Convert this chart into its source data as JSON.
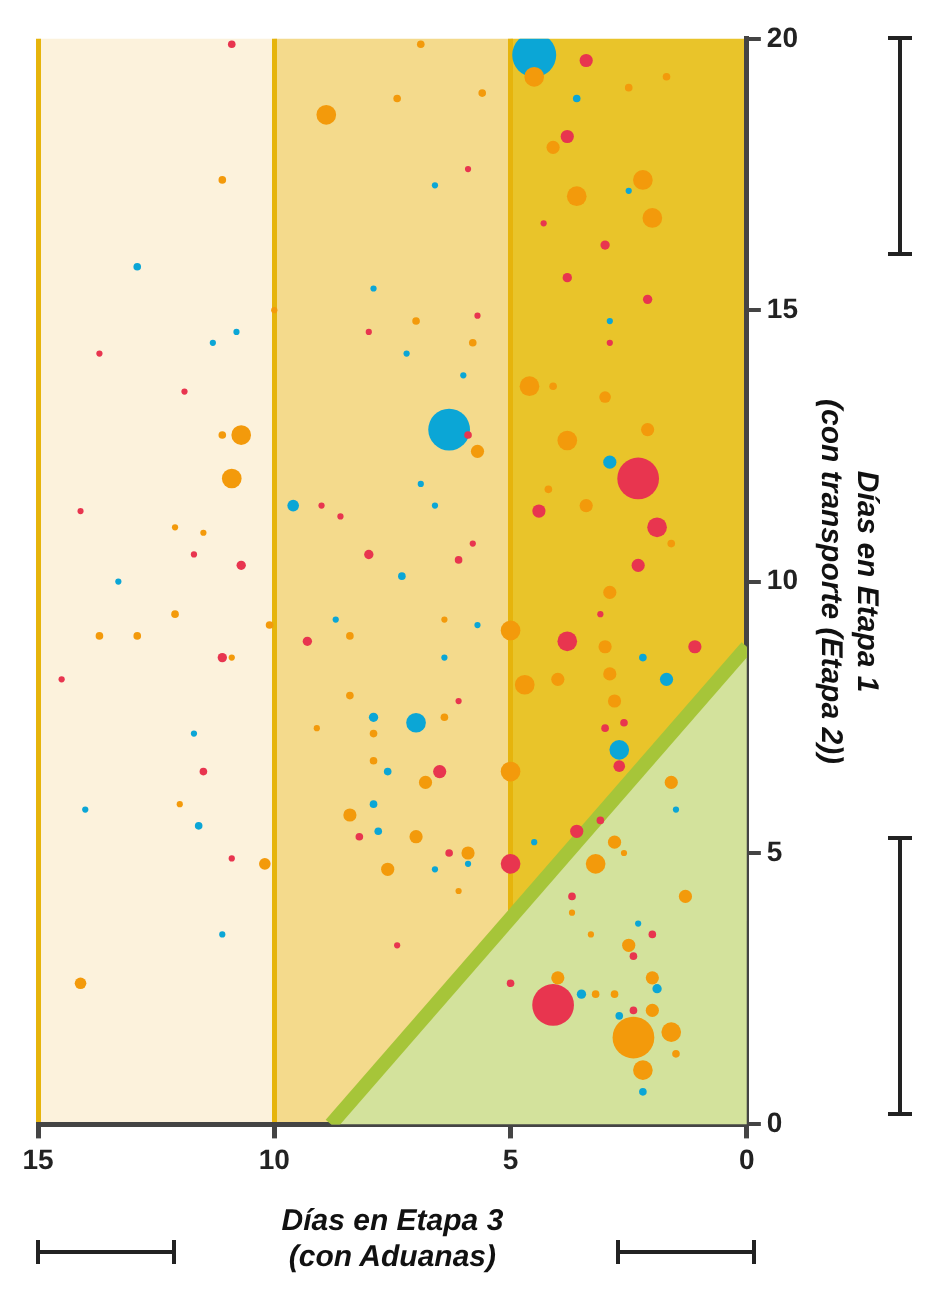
{
  "chart_data": {
    "type": "bubble",
    "xlabel": "Días en Etapa 3\n(con Aduanas)",
    "ylabel": "Días en Etapa 1\n(con transporte (Etapa 2))",
    "xlim": [
      15,
      0
    ],
    "xticks": [
      15,
      10,
      5,
      0
    ],
    "ylim": [
      0,
      20
    ],
    "yticks": [
      0,
      5,
      10,
      15,
      20
    ],
    "grid": "x",
    "bands": [
      {
        "axis": "x",
        "from": 0,
        "to": 5,
        "color": "#e9c42a"
      },
      {
        "axis": "x",
        "from": 5,
        "to": 10,
        "color": "#f4da8c"
      },
      {
        "axis": "x",
        "from": 10,
        "to": 15,
        "color": "#fcf2dc"
      }
    ],
    "series": [
      {
        "type": "area",
        "color": "#a6c539",
        "x": [
          0,
          8.8
        ],
        "values": [
          8.8,
          0
        ]
      },
      {
        "color": "#f39a0b",
        "x": [
          8.9,
          7.4,
          11.1,
          10.0,
          6.9,
          5.6,
          2.5,
          1.7,
          4.5,
          4.1,
          2.2,
          2.0,
          3.6,
          7.0,
          5.8,
          4.6,
          4.1,
          3.0,
          10.7,
          11.1,
          10.9,
          12.1,
          11.5,
          12.1,
          12.9,
          13.7,
          10.9,
          8.4,
          10.1,
          8.4,
          7.9,
          9.1,
          5.7,
          3.8,
          2.1,
          3.4,
          4.2,
          1.6,
          2.9,
          5.0,
          3.0,
          4.7,
          4.0,
          2.9,
          2.8,
          6.4,
          6.4,
          12.0,
          10.2,
          14.1,
          7.9,
          8.4,
          7.6,
          2.4,
          2.2,
          1.6,
          2.0,
          3.2,
          5.0,
          5.9,
          7.0,
          6.8,
          1.6,
          1.3,
          2.5,
          2.0,
          4.0,
          2.8,
          1.5,
          3.2,
          2.8,
          2.6,
          3.3,
          3.7,
          6.1
        ],
        "values": [
          18.6,
          18.9,
          17.4,
          15.0,
          19.9,
          19.0,
          19.1,
          19.3,
          19.3,
          18.0,
          17.4,
          16.7,
          17.1,
          14.8,
          14.4,
          13.6,
          13.6,
          13.4,
          12.7,
          12.7,
          11.9,
          11.0,
          10.9,
          9.4,
          9.0,
          9.0,
          8.6,
          9.0,
          9.2,
          7.9,
          7.2,
          7.3,
          12.4,
          12.6,
          12.8,
          11.4,
          11.7,
          10.7,
          9.8,
          9.1,
          8.8,
          8.1,
          8.2,
          8.3,
          7.8,
          7.5,
          9.3,
          5.9,
          4.8,
          2.6,
          6.7,
          5.7,
          4.7,
          1.6,
          1.0,
          1.7,
          2.1,
          4.8,
          6.5,
          5.0,
          5.3,
          6.3,
          6.3,
          4.2,
          3.3,
          2.7,
          2.7,
          5.2,
          1.3,
          2.4,
          2.4,
          5.0,
          3.5,
          3.9,
          4.3
        ],
        "sizes": [
          0.2,
          0.03,
          0.03,
          0.02,
          0.03,
          0.03,
          0.03,
          0.03,
          0.2,
          0.09,
          0.2,
          0.2,
          0.2,
          0.03,
          0.03,
          0.2,
          0.03,
          0.07,
          0.2,
          0.03,
          0.2,
          0.02,
          0.02,
          0.03,
          0.03,
          0.03,
          0.02,
          0.03,
          0.03,
          0.03,
          0.03,
          0.02,
          0.09,
          0.2,
          0.09,
          0.09,
          0.03,
          0.03,
          0.09,
          0.2,
          0.09,
          0.2,
          0.09,
          0.09,
          0.09,
          0.03,
          0.02,
          0.02,
          0.07,
          0.07,
          0.03,
          0.09,
          0.09,
          0.9,
          0.2,
          0.2,
          0.09,
          0.2,
          0.2,
          0.09,
          0.09,
          0.09,
          0.09,
          0.09,
          0.09,
          0.09,
          0.09,
          0.09,
          0.03,
          0.03,
          0.03,
          0.02,
          0.02,
          0.02,
          0.02
        ]
      },
      {
        "color": "#e8354f",
        "x": [
          10.9,
          8.0,
          13.7,
          11.9,
          3.4,
          3.8,
          3.0,
          3.8,
          2.1,
          4.3,
          2.9,
          5.7,
          5.9,
          9.0,
          8.6,
          8.0,
          10.7,
          14.1,
          11.7,
          11.1,
          9.3,
          14.5,
          5.9,
          2.3,
          1.9,
          2.3,
          4.4,
          3.8,
          1.1,
          6.1,
          5.8,
          3.0,
          2.6,
          6.1,
          3.1,
          11.5,
          10.9,
          8.2,
          7.4,
          4.1,
          5.0,
          3.6,
          6.5,
          2.7,
          2.4,
          5.0,
          3.7,
          2.4,
          2.0,
          6.3,
          3.1
        ],
        "values": [
          19.9,
          14.6,
          14.2,
          13.5,
          19.6,
          18.2,
          16.2,
          15.6,
          15.2,
          16.6,
          14.4,
          14.9,
          17.6,
          11.4,
          11.2,
          10.5,
          10.3,
          11.3,
          10.5,
          8.6,
          8.9,
          8.2,
          12.7,
          11.9,
          11.0,
          10.3,
          11.3,
          8.9,
          8.8,
          10.4,
          10.7,
          7.3,
          7.4,
          7.8,
          9.4,
          6.5,
          4.9,
          5.3,
          3.3,
          2.2,
          4.8,
          5.4,
          6.5,
          6.6,
          2.1,
          2.6,
          4.2,
          3.1,
          3.5,
          5.0,
          5.6
        ],
        "sizes": [
          0.03,
          0.02,
          0.02,
          0.02,
          0.09,
          0.09,
          0.045,
          0.045,
          0.045,
          0.02,
          0.02,
          0.02,
          0.02,
          0.02,
          0.02,
          0.045,
          0.045,
          0.02,
          0.02,
          0.045,
          0.045,
          0.02,
          0.03,
          0.9,
          0.2,
          0.09,
          0.09,
          0.2,
          0.09,
          0.03,
          0.02,
          0.03,
          0.03,
          0.02,
          0.02,
          0.03,
          0.02,
          0.03,
          0.02,
          0.9,
          0.2,
          0.09,
          0.09,
          0.07,
          0.03,
          0.03,
          0.03,
          0.03,
          0.03,
          0.03,
          0.03
        ]
      },
      {
        "color": "#0ba6d6",
        "x": [
          12.9,
          10.8,
          11.3,
          7.9,
          4.5,
          3.6,
          2.5,
          2.9,
          7.2,
          6.0,
          6.6,
          9.6,
          8.7,
          7.9,
          11.7,
          13.3,
          6.3,
          2.9,
          1.7,
          2.2,
          2.7,
          7.0,
          7.3,
          6.9,
          6.6,
          5.7,
          6.4,
          11.6,
          7.6,
          7.9,
          7.8,
          11.1,
          14.0,
          3.5,
          1.9,
          2.7,
          2.2,
          6.6,
          5.9,
          4.5,
          2.3,
          1.5
        ],
        "values": [
          15.8,
          14.6,
          14.4,
          15.4,
          19.7,
          18.9,
          17.2,
          14.8,
          14.2,
          13.8,
          17.3,
          11.4,
          9.3,
          7.5,
          7.2,
          10.0,
          12.8,
          12.2,
          8.2,
          8.6,
          6.9,
          7.4,
          10.1,
          11.8,
          11.4,
          9.2,
          8.6,
          5.5,
          6.5,
          5.9,
          5.4,
          3.5,
          5.8,
          2.4,
          2.5,
          2.0,
          0.6,
          4.7,
          4.8,
          5.2,
          3.7,
          5.8
        ],
        "sizes": [
          0.03,
          0.02,
          0.02,
          0.02,
          1,
          0.03,
          0.02,
          0.02,
          0.02,
          0.02,
          0.02,
          0.07,
          0.02,
          0.045,
          0.02,
          0.02,
          0.9,
          0.09,
          0.09,
          0.03,
          0.2,
          0.2,
          0.03,
          0.02,
          0.02,
          0.02,
          0.02,
          0.03,
          0.03,
          0.03,
          0.03,
          0.02,
          0.02,
          0.045,
          0.045,
          0.03,
          0.03,
          0.02,
          0.02,
          0.02,
          0.02,
          0.02
        ]
      }
    ]
  }
}
